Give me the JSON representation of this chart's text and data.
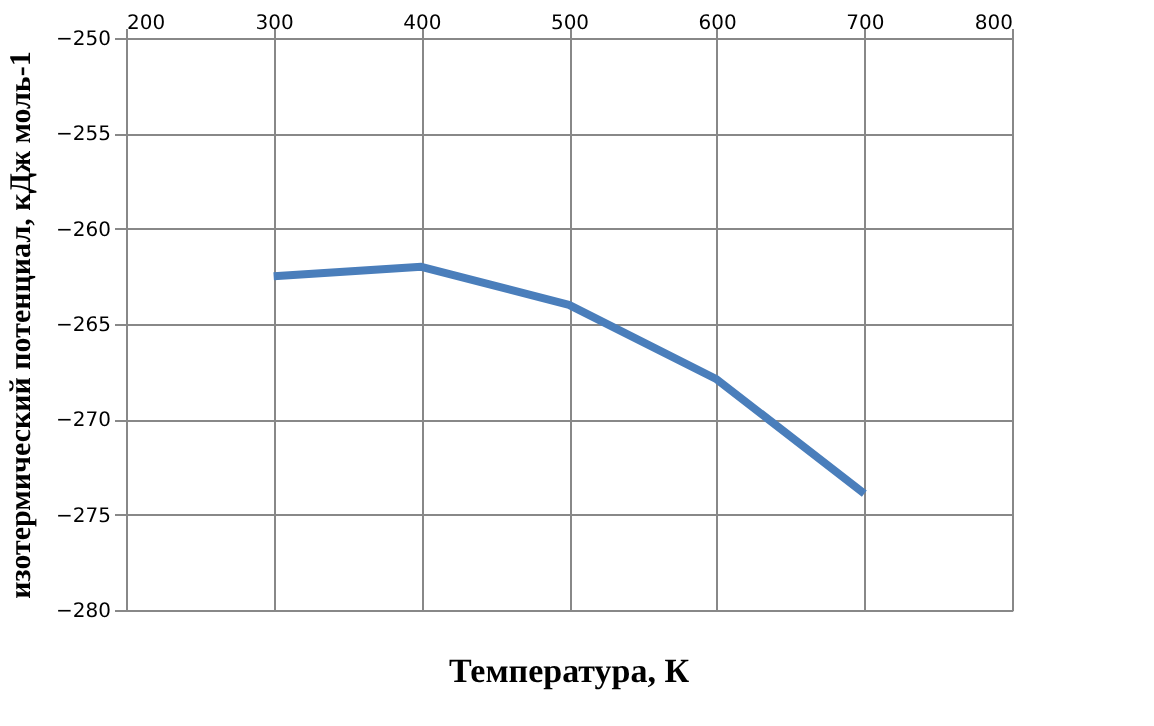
{
  "chart_data": {
    "type": "line",
    "xlabel": "Температура, К",
    "ylabel": "изотермический потенциал, кДж    моль-1",
    "x": [
      300,
      400,
      500,
      600,
      700
    ],
    "series": [
      {
        "color": "#4a7ebb",
        "values": [
          -262.5,
          -262.0,
          -264.0,
          -267.9,
          -273.9
        ]
      }
    ],
    "xlim": [
      200,
      800
    ],
    "xticks": [
      200,
      300,
      400,
      500,
      600,
      700,
      800
    ],
    "ylim": [
      -280,
      -250
    ],
    "yticks": [
      -280,
      -275,
      -270,
      -265,
      -260,
      -255,
      -250
    ],
    "grid": true,
    "legend": false,
    "marker": "none",
    "line_style": "solid"
  }
}
